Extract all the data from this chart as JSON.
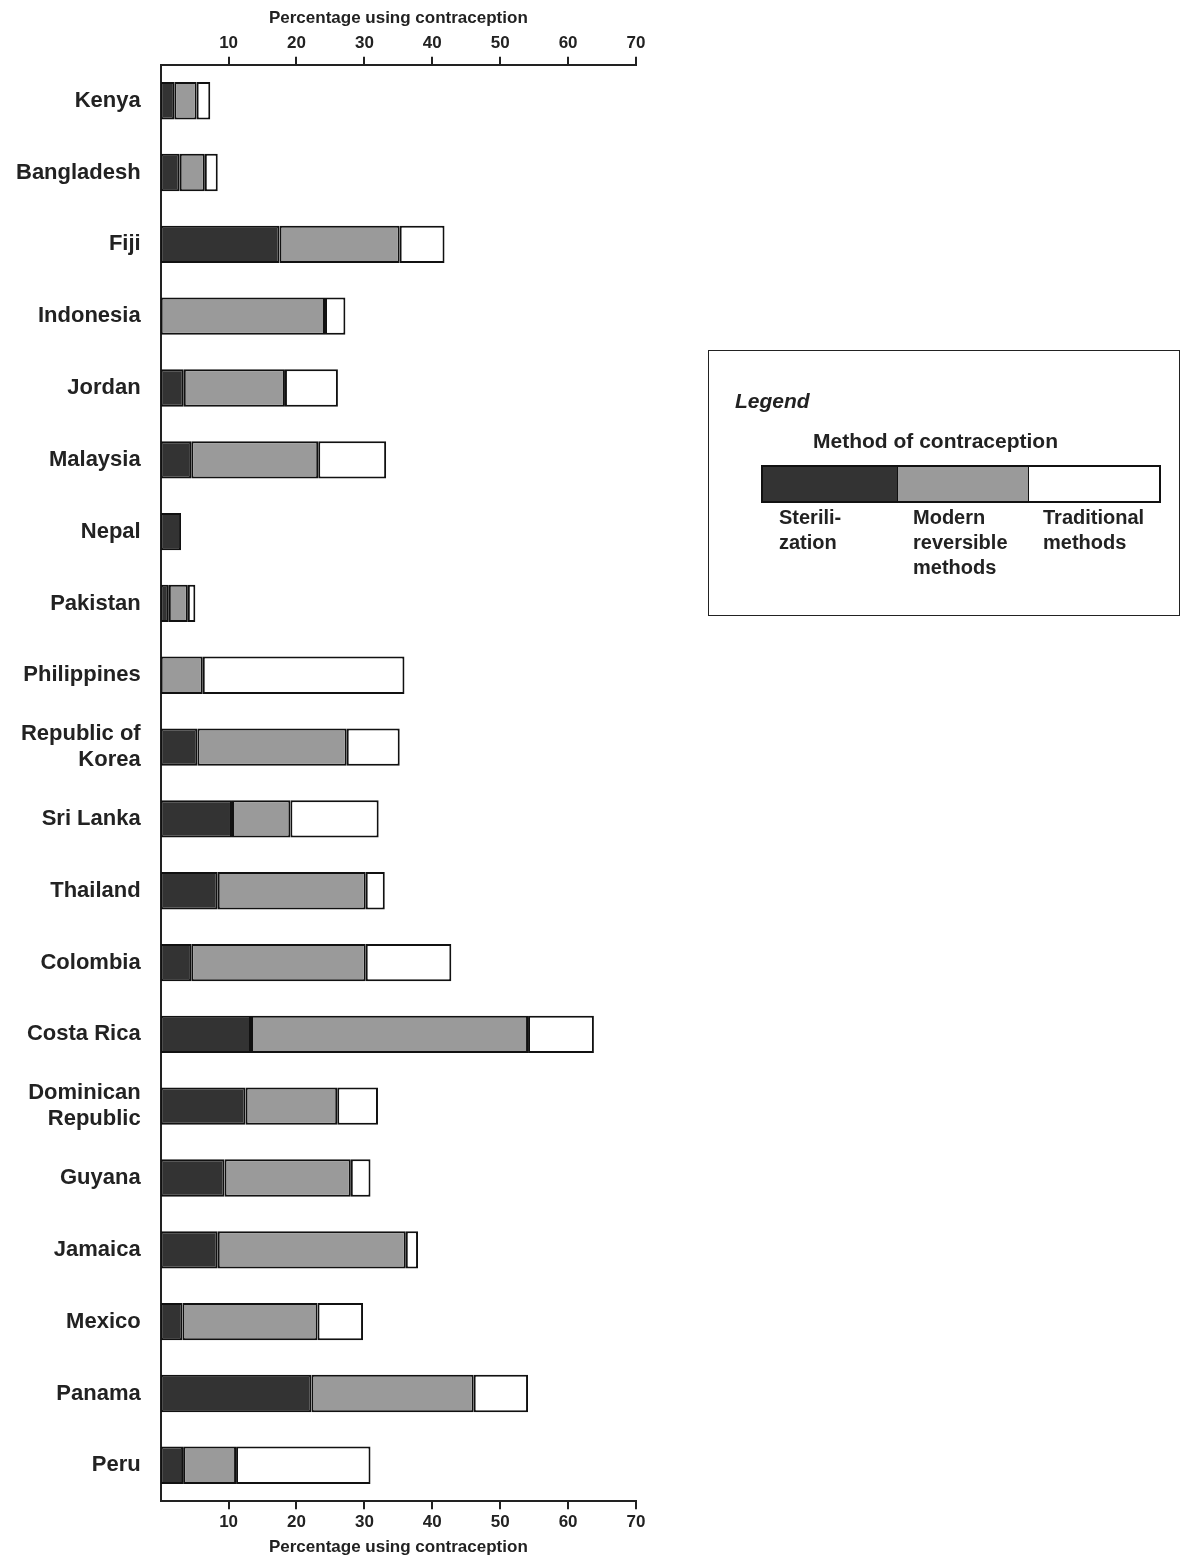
{
  "chart_data": {
    "type": "bar",
    "orientation": "horizontal",
    "stacked": true,
    "categories": [
      "Kenya",
      "Bangladesh",
      "Fiji",
      "Indonesia",
      "Jordan",
      "Malaysia",
      "Nepal",
      "Pakistan",
      "Philippines",
      "Republic of Korea",
      "Sri Lanka",
      "Thailand",
      "Colombia",
      "Costa Rica",
      "Dominican Republic",
      "Guyana",
      "Jamaica",
      "Mexico",
      "Panama",
      "Peru"
    ],
    "series": [
      {
        "name": "Sterili-zation",
        "color": "#333333",
        "values": [
          2,
          2.8,
          17.5,
          0,
          3.4,
          4.5,
          3,
          1.2,
          0,
          5.4,
          10.5,
          8.4,
          4.5,
          13.3,
          12.5,
          9.4,
          8.4,
          3.2,
          22.2,
          3.3
        ]
      },
      {
        "name": "Modern reversible methods",
        "color": "#9a9a9a",
        "values": [
          3.3,
          3.7,
          17.7,
          24.2,
          14.9,
          18.7,
          0,
          2.8,
          6.2,
          22,
          8.6,
          21.8,
          25.7,
          40.8,
          13.5,
          18.6,
          27.7,
          19.9,
          23.9,
          7.8
        ]
      },
      {
        "name": "Traditional methods",
        "color": "#ffffff",
        "values": [
          2,
          1.9,
          6.6,
          3,
          7.8,
          10,
          0,
          1.1,
          29.7,
          7.8,
          13,
          2.8,
          12.6,
          9.7,
          6,
          2.9,
          1.8,
          6.7,
          8,
          19.8
        ]
      }
    ],
    "xlabel": "Percentage using contraception",
    "x2label": "Percentage using contraception",
    "xlim": [
      0,
      70
    ],
    "xticks": [
      10,
      20,
      30,
      40,
      50,
      60,
      70
    ],
    "x2lim": [
      0,
      70
    ],
    "x2ticks": [
      10,
      20,
      30,
      40,
      50,
      60,
      70
    ],
    "legend": "right",
    "legend_title": "Method of contraception",
    "annotations": [
      "Legend"
    ],
    "grid": false
  }
}
